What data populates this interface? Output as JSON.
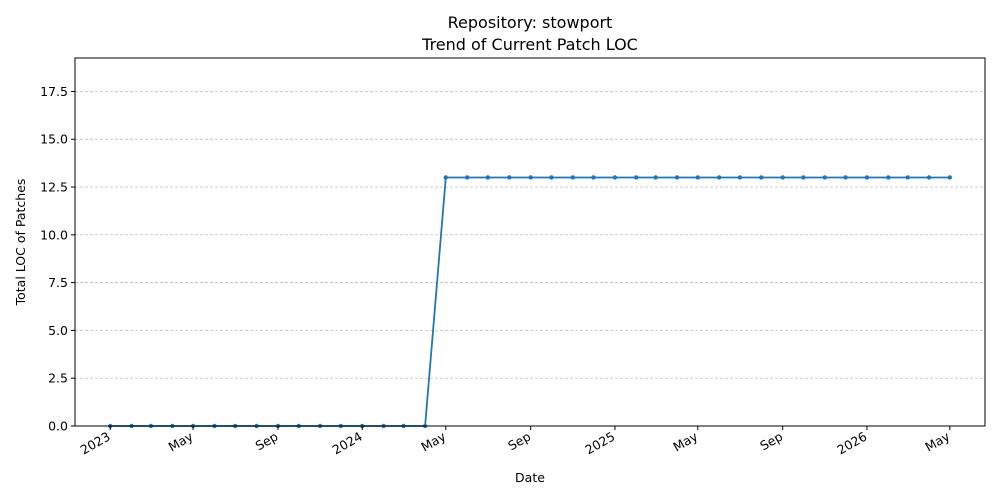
{
  "chart_data": {
    "type": "line",
    "title": "Repository: stowport",
    "subtitle": "Trend of Current Patch LOC",
    "xlabel": "Date",
    "ylabel": "Total LOC of Patches",
    "xlim": [
      "2022-11-11",
      "2026-06-21"
    ],
    "ylim": [
      0,
      19.25
    ],
    "yticks": [
      0.0,
      2.5,
      5.0,
      7.5,
      10.0,
      12.5,
      15.0,
      17.5
    ],
    "ytick_labels": [
      "0.0",
      "2.5",
      "5.0",
      "7.5",
      "10.0",
      "12.5",
      "15.0",
      "17.5"
    ],
    "xticks": [
      "2023-01-01",
      "2023-05-01",
      "2023-09-01",
      "2024-01-01",
      "2024-05-01",
      "2024-09-01",
      "2025-01-01",
      "2025-05-01",
      "2025-09-01",
      "2026-01-01",
      "2026-05-01"
    ],
    "xtick_labels": [
      "2023",
      "May",
      "Sep",
      "2024",
      "May",
      "Sep",
      "2025",
      "May",
      "Sep",
      "2026",
      "May"
    ],
    "grid": "horizontal dashed",
    "color": "#1f77b4",
    "series": [
      {
        "x": [
          "2023-01-01",
          "2023-02-01",
          "2023-03-01",
          "2023-04-01",
          "2023-05-01",
          "2023-06-01",
          "2023-07-01",
          "2023-08-01",
          "2023-09-01",
          "2023-10-01",
          "2023-11-01",
          "2023-12-01",
          "2024-01-01",
          "2024-02-01",
          "2024-03-01",
          "2024-04-01",
          "2024-05-01",
          "2024-06-01",
          "2024-07-01",
          "2024-08-01",
          "2024-09-01",
          "2024-10-01",
          "2024-11-01",
          "2024-12-01",
          "2025-01-01",
          "2025-02-01",
          "2025-03-01",
          "2025-04-01",
          "2025-05-01",
          "2025-06-01",
          "2025-07-01",
          "2025-08-01",
          "2025-09-01",
          "2025-10-01",
          "2025-11-01",
          "2025-12-01",
          "2026-01-01",
          "2026-02-01",
          "2026-03-01",
          "2026-04-01",
          "2026-05-01"
        ],
        "values": [
          0,
          0,
          0,
          0,
          0,
          0,
          0,
          0,
          0,
          0,
          0,
          0,
          0,
          0,
          0,
          0,
          13,
          13,
          13,
          13,
          13,
          13,
          13,
          13,
          13,
          13,
          13,
          13,
          13,
          13,
          13,
          13,
          13,
          13,
          13,
          13,
          13,
          13,
          13,
          13,
          13
        ]
      }
    ]
  }
}
